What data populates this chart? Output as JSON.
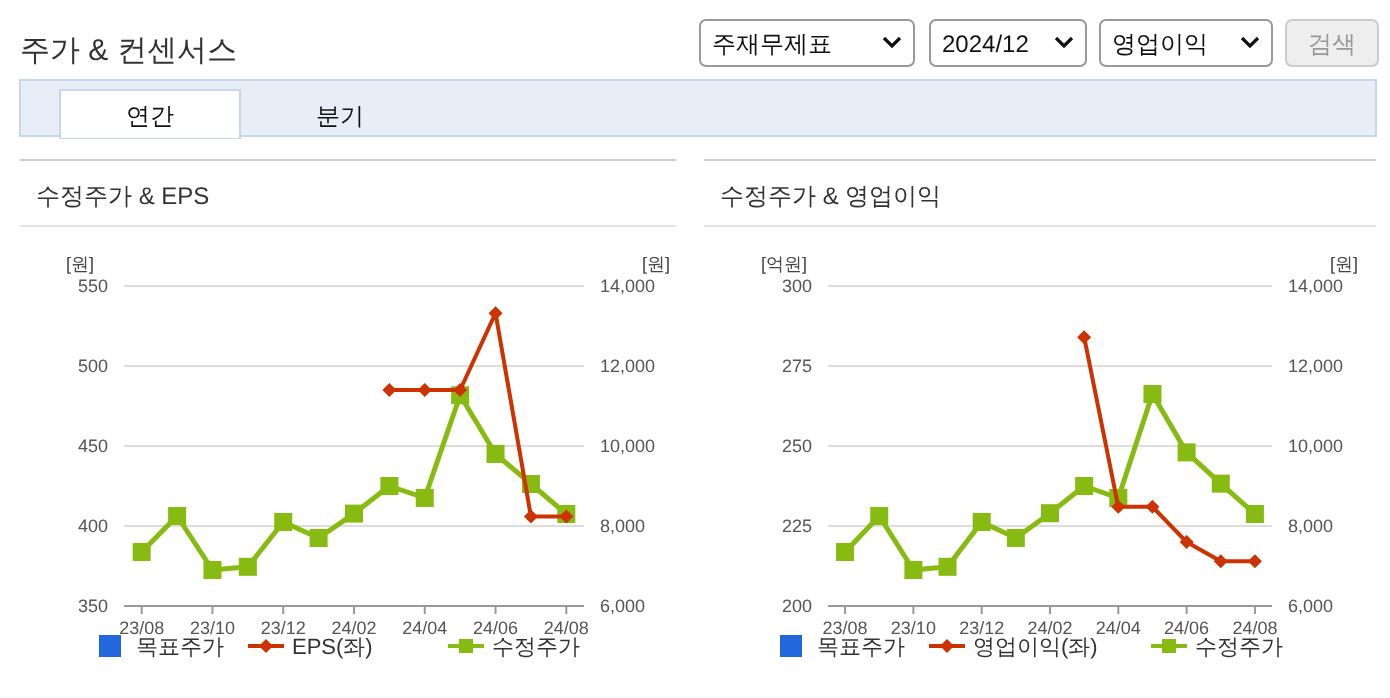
{
  "chart_data": [
    {
      "type": "other",
      "title": "주가 & 컨센서스",
      "annotations": [
        "주재무제표",
        "2024/12",
        "영업이익",
        "검색",
        "연간",
        "분기"
      ]
    },
    {
      "type": "line",
      "title": "수정주가 & EPS",
      "ylabel": "[원]",
      "y2label": "[원]",
      "categories": [
        "23/08",
        null,
        "23/10",
        null,
        "23/12",
        null,
        "24/02",
        null,
        "24/04",
        null,
        "24/06",
        null,
        "24/08"
      ],
      "ylim": [
        350,
        550
      ],
      "yticks": [
        350,
        400,
        450,
        500,
        550
      ],
      "y2lim": [
        6000,
        14000
      ],
      "y2ticks": [
        {
          "value": 6000,
          "label": "6,000"
        },
        {
          "value": 8000,
          "label": "8,000"
        },
        {
          "value": 10000,
          "label": "10,000"
        },
        {
          "value": 12000,
          "label": "12,000"
        },
        {
          "value": 14000,
          "label": "14,000"
        }
      ],
      "grid": "y",
      "legend": "bottom",
      "series": [
        {
          "name": "목표주가",
          "color": "#2266dd",
          "marker": "square",
          "axis": "y2",
          "values": [
            null,
            null,
            null,
            null,
            null,
            null,
            null,
            null,
            null,
            null,
            null,
            null,
            null
          ]
        },
        {
          "name": "EPS(좌)",
          "color": "#cc3300",
          "marker": "diamond",
          "values": [
            null,
            null,
            null,
            null,
            null,
            null,
            null,
            485,
            485,
            485,
            533,
            406,
            406
          ]
        },
        {
          "name": "수정주가",
          "color": "#88bb11",
          "marker": "square",
          "axis": "y2",
          "values": [
            7350,
            8250,
            6900,
            6980,
            8100,
            7700,
            8310,
            9000,
            8700,
            11270,
            9800,
            9050,
            8300
          ]
        }
      ]
    },
    {
      "type": "line",
      "title": "수정주가 & 영업이익",
      "ylabel": "[억원]",
      "y2label": "[원]",
      "categories": [
        "23/08",
        null,
        "23/10",
        null,
        "23/12",
        null,
        "24/02",
        null,
        "24/04",
        null,
        "24/06",
        null,
        "24/08"
      ],
      "ylim": [
        200,
        300
      ],
      "yticks": [
        200,
        225,
        250,
        275,
        300
      ],
      "y2lim": [
        6000,
        14000
      ],
      "y2ticks": [
        {
          "value": 6000,
          "label": "6,000"
        },
        {
          "value": 8000,
          "label": "8,000"
        },
        {
          "value": 10000,
          "label": "10,000"
        },
        {
          "value": 12000,
          "label": "12,000"
        },
        {
          "value": 14000,
          "label": "14,000"
        }
      ],
      "grid": "y",
      "legend": "bottom",
      "series": [
        {
          "name": "목표주가",
          "color": "#2266dd",
          "marker": "square",
          "axis": "y2",
          "values": [
            null,
            null,
            null,
            null,
            null,
            null,
            null,
            null,
            null,
            null,
            null,
            null,
            null
          ]
        },
        {
          "name": "영업이익(좌)",
          "color": "#cc3300",
          "marker": "diamond",
          "values": [
            null,
            null,
            null,
            null,
            null,
            null,
            null,
            284,
            231,
            231,
            220,
            214,
            214
          ]
        },
        {
          "name": "수정주가",
          "color": "#88bb11",
          "marker": "square",
          "axis": "y2",
          "values": [
            7350,
            8250,
            6900,
            6980,
            8100,
            7700,
            8320,
            9000,
            8700,
            11300,
            9840,
            9060,
            8300
          ]
        }
      ]
    }
  ]
}
